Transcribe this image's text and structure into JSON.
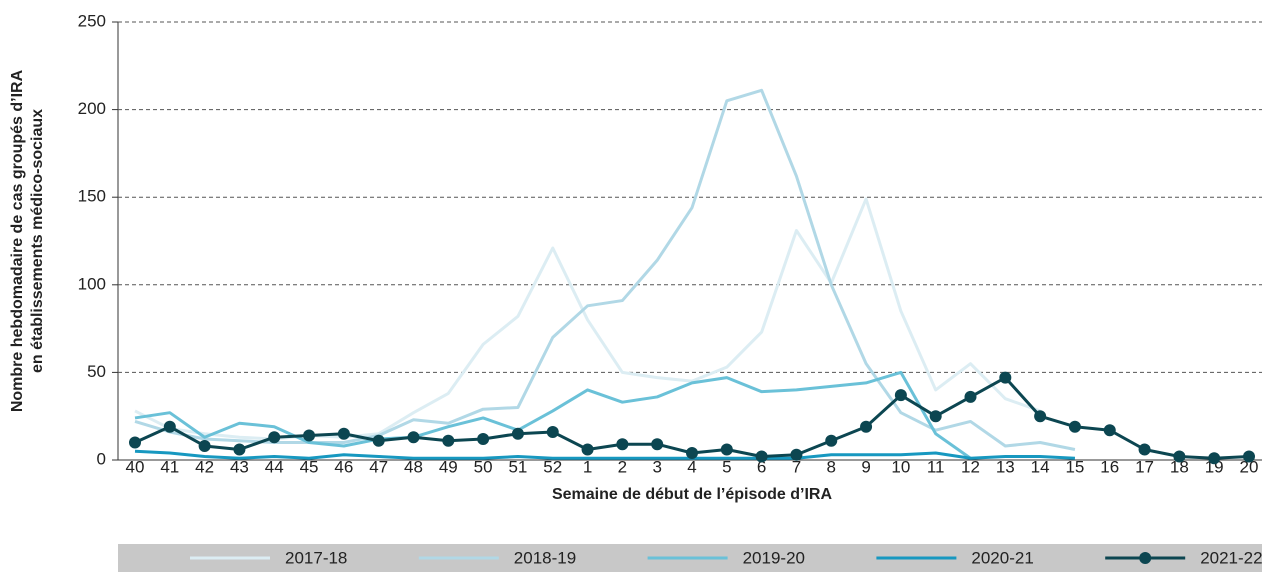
{
  "chart_data": {
    "type": "line",
    "y_label": [
      "Nombre hebdomadaire de cas groupés d’IRA",
      "en établissements médico-sociaux"
    ],
    "x_label": "Semaine de début de l’épisode d’IRA",
    "categories": [
      "40",
      "41",
      "42",
      "43",
      "44",
      "45",
      "46",
      "47",
      "48",
      "49",
      "50",
      "51",
      "52",
      "1",
      "2",
      "3",
      "4",
      "5",
      "6",
      "7",
      "8",
      "9",
      "10",
      "11",
      "12",
      "13",
      "14",
      "15",
      "16",
      "17",
      "18",
      "19",
      "20"
    ],
    "ylim": [
      0,
      250
    ],
    "yticks": [
      0,
      50,
      100,
      150,
      200,
      250
    ],
    "grid": true,
    "legend": "bottom",
    "series": [
      {
        "name": "2017-18",
        "color": "#dcedf3",
        "values": [
          28,
          18,
          15,
          13,
          12,
          14,
          13,
          15,
          27,
          38,
          66,
          82,
          121,
          80,
          50,
          47,
          45,
          53,
          73,
          131,
          101,
          149,
          85,
          40,
          55,
          35,
          28,
          null,
          null,
          null,
          null,
          null,
          null
        ]
      },
      {
        "name": "2018-19",
        "color": "#b1d8e6",
        "values": [
          22,
          16,
          12,
          11,
          10,
          10,
          10,
          14,
          23,
          21,
          29,
          30,
          70,
          88,
          91,
          114,
          144,
          205,
          211,
          162,
          100,
          55,
          27,
          17,
          22,
          8,
          10,
          6,
          null,
          null,
          null,
          null,
          null
        ]
      },
      {
        "name": "2019-20",
        "color": "#6ac1d8",
        "values": [
          24,
          27,
          13,
          21,
          19,
          10,
          8,
          12,
          13,
          19,
          24,
          17,
          28,
          40,
          33,
          36,
          44,
          47,
          39,
          40,
          42,
          44,
          50,
          15,
          1,
          null,
          null,
          null,
          null,
          null,
          null,
          null,
          null
        ]
      },
      {
        "name": "2020-21",
        "color": "#1798c0",
        "values": [
          5,
          4,
          2,
          1,
          2,
          1,
          3,
          2,
          1,
          1,
          1,
          2,
          1,
          1,
          1,
          1,
          1,
          1,
          1,
          1,
          3,
          3,
          3,
          4,
          1,
          2,
          2,
          1,
          null,
          null,
          null,
          null,
          null
        ]
      },
      {
        "name": "2021-22",
        "color": "#0c4651",
        "marker": "circle",
        "values": [
          10,
          19,
          8,
          6,
          13,
          14,
          15,
          11,
          13,
          11,
          12,
          15,
          16,
          6,
          9,
          9,
          4,
          6,
          2,
          3,
          11,
          19,
          37,
          25,
          36,
          47,
          25,
          19,
          17,
          6,
          2,
          1,
          2
        ]
      }
    ]
  }
}
